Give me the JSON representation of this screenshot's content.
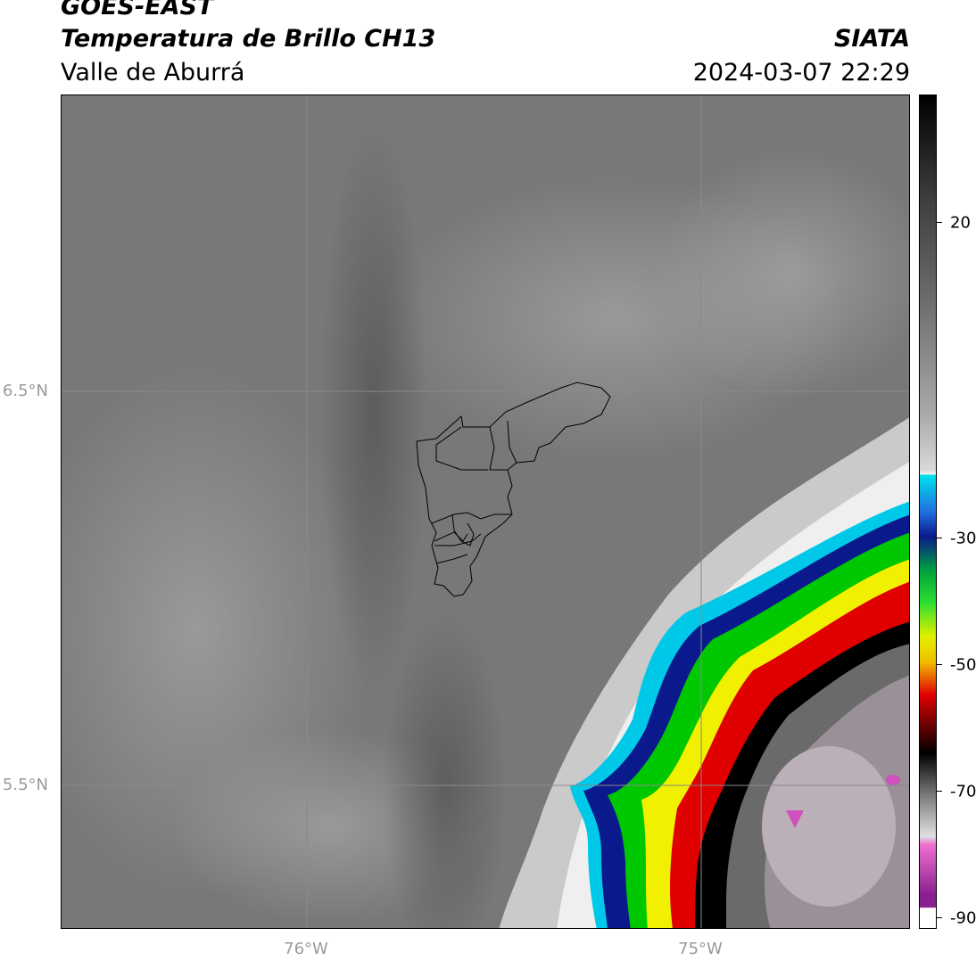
{
  "header": {
    "satellite": "GOES-EAST",
    "product": "Temperatura de Brillo CH13",
    "region": "Valle de Aburrá",
    "organization": "SIATA",
    "timestamp": "2024-03-07 22:29"
  },
  "map": {
    "lat_labels": [
      "6.5°N",
      "5.5°N"
    ],
    "lon_labels": [
      "76°W",
      "75°W"
    ],
    "lat_range": [
      5.135,
      7.253
    ],
    "lon_range": [
      -76.62,
      -74.465
    ],
    "gridlines": true
  },
  "colorbar": {
    "tick_labels": [
      "20",
      "-30",
      "-50",
      "-70",
      "-90"
    ],
    "range": [
      -91.4,
      40
    ],
    "colors": {
      "gray_warm": "#6e6e6e",
      "cold_cyan": "#00c8e8",
      "deep_blue": "#0a1a8c",
      "green": "#00c800",
      "yellow": "#f0f000",
      "red": "#e00000",
      "black": "#000000",
      "magenta": "#d050c0"
    }
  }
}
